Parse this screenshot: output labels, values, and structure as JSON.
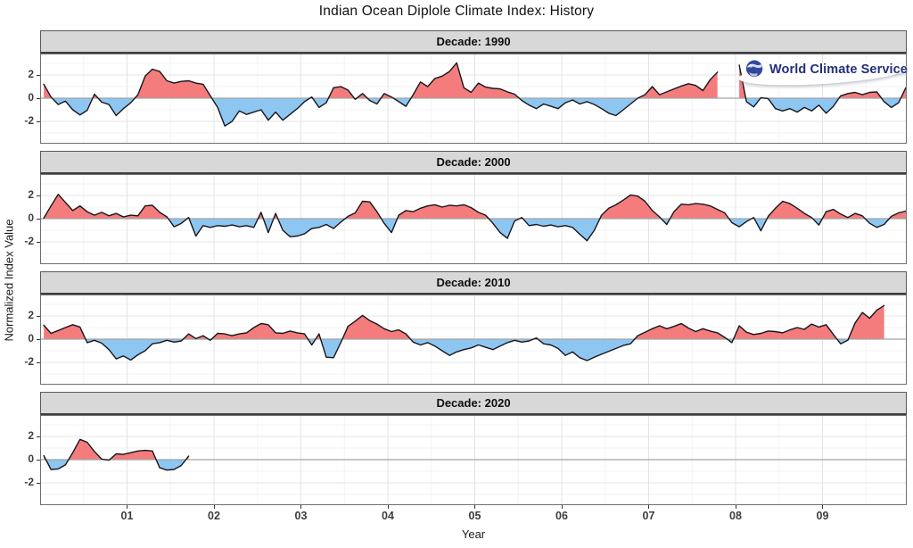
{
  "branding": {
    "logo_text": "World Climate Service"
  },
  "chart_data": {
    "type": "area",
    "title": "Indian Ocean Diplole Climate Index: History",
    "xlabel": "Year",
    "ylabel": "Normalized Index Value",
    "x_tick_labels": [
      "01",
      "02",
      "03",
      "04",
      "05",
      "06",
      "07",
      "08",
      "09"
    ],
    "x_tick_years": [
      1,
      2,
      3,
      4,
      5,
      6,
      7,
      8,
      9
    ],
    "y_ticks": [
      2,
      0,
      -2
    ],
    "y_minor_ticks": [
      3,
      1,
      -1,
      -3
    ],
    "x_range_years": [
      0,
      9.97
    ],
    "y_range": [
      -3.9,
      3.85
    ],
    "grid": true,
    "legend": "none",
    "point_interval": "monthly",
    "colors": {
      "positive_fill": "#f47c7c",
      "negative_fill": "#8ec6f2",
      "line": "#16161d",
      "zero_line": "#a3a3a3",
      "grid_major": "#e4e4e4",
      "grid_minor": "#f3f3f3",
      "panel_border": "#6e6e6e",
      "strip_bg": "#d8d8d8",
      "strip_border": "#3f3f3f",
      "logo_text_color": "#232e7b"
    },
    "facets": [
      {
        "label": "Decade: 1990",
        "values": [
          1.2,
          0.1,
          -0.55,
          -0.25,
          -1.0,
          -1.45,
          -1.05,
          0.35,
          -0.35,
          -0.55,
          -1.5,
          -0.9,
          -0.4,
          0.3,
          1.9,
          2.5,
          2.3,
          1.5,
          1.3,
          1.45,
          1.5,
          1.3,
          1.2,
          0.2,
          -0.8,
          -2.4,
          -2.0,
          -1.1,
          -1.4,
          -1.2,
          -1.0,
          -1.9,
          -1.2,
          -1.9,
          -1.4,
          -0.9,
          -0.3,
          0.1,
          -0.8,
          -0.4,
          0.9,
          1.0,
          0.7,
          -0.1,
          0.4,
          -0.2,
          -0.5,
          0.4,
          0.1,
          -0.3,
          -0.7,
          0.3,
          1.4,
          1.0,
          1.7,
          1.9,
          2.3,
          3.05,
          0.9,
          0.5,
          1.3,
          0.95,
          0.85,
          0.8,
          0.55,
          0.35,
          -0.2,
          -0.6,
          -0.9,
          -0.5,
          -0.7,
          -0.9,
          -0.4,
          -0.15,
          -0.5,
          -0.3,
          -0.55,
          -0.9,
          -1.3,
          -1.5,
          -1.0,
          -0.5,
          0.0,
          0.3,
          1.0,
          0.3,
          0.55,
          0.8,
          1.05,
          1.25,
          1.1,
          0.65,
          1.6,
          2.25,
          null,
          null,
          2.85,
          -0.3,
          -0.75,
          0.05,
          -0.05,
          -0.9,
          -1.1,
          -0.9,
          -1.2,
          -0.8,
          -1.1,
          -0.6,
          -1.3,
          -0.7,
          0.2,
          0.4,
          0.5,
          0.3,
          0.5,
          0.55,
          -0.3,
          -0.8,
          -0.4,
          0.9
        ]
      },
      {
        "label": "Decade: 2000",
        "values": [
          0.05,
          1.1,
          2.1,
          1.4,
          0.7,
          1.1,
          0.6,
          0.3,
          0.55,
          0.25,
          0.45,
          0.15,
          0.3,
          0.25,
          1.1,
          1.15,
          0.55,
          0.15,
          -0.7,
          -0.4,
          0.1,
          -1.5,
          -0.6,
          -0.75,
          -0.6,
          -0.65,
          -0.55,
          -0.7,
          -0.6,
          -0.75,
          0.55,
          -1.2,
          0.45,
          -1.0,
          -1.55,
          -1.5,
          -1.3,
          -0.85,
          -0.75,
          -0.5,
          -0.85,
          -0.3,
          0.2,
          0.5,
          1.5,
          1.45,
          0.6,
          -0.4,
          -1.2,
          0.3,
          0.7,
          0.6,
          0.9,
          1.1,
          1.2,
          1.0,
          1.15,
          1.1,
          1.2,
          0.95,
          0.55,
          0.3,
          -0.4,
          -1.2,
          -1.7,
          -0.2,
          0.1,
          -0.6,
          -0.5,
          -0.65,
          -0.55,
          -0.7,
          -0.6,
          -0.75,
          -1.35,
          -1.9,
          -1.0,
          0.3,
          0.9,
          1.2,
          1.6,
          2.05,
          1.95,
          1.5,
          0.7,
          0.15,
          -0.5,
          0.6,
          1.25,
          1.2,
          1.3,
          1.25,
          1.1,
          0.8,
          0.5,
          -0.35,
          -0.7,
          -0.25,
          0.1,
          -1.05,
          0.2,
          0.9,
          1.5,
          1.3,
          0.9,
          0.45,
          0.1,
          -0.55,
          0.6,
          0.8,
          0.4,
          0.1,
          0.45,
          0.25,
          -0.4,
          -0.75,
          -0.5,
          0.2,
          0.5,
          0.65
        ]
      },
      {
        "label": "Decade: 2010",
        "values": [
          1.2,
          0.5,
          0.75,
          1.0,
          1.25,
          1.05,
          -0.3,
          -0.1,
          -0.35,
          -0.9,
          -1.7,
          -1.45,
          -1.8,
          -1.35,
          -1.0,
          -0.4,
          -0.3,
          -0.1,
          -0.25,
          -0.15,
          0.45,
          0.05,
          0.3,
          -0.1,
          0.5,
          0.45,
          0.3,
          0.45,
          0.55,
          1.0,
          1.35,
          1.25,
          0.55,
          0.5,
          0.7,
          0.55,
          0.45,
          -0.5,
          0.45,
          -1.55,
          -1.6,
          -0.3,
          1.1,
          1.55,
          2.05,
          1.6,
          1.3,
          0.9,
          0.65,
          0.8,
          0.45,
          -0.25,
          -0.5,
          -0.3,
          -0.6,
          -1.0,
          -1.4,
          -1.1,
          -0.9,
          -0.75,
          -0.5,
          -0.7,
          -0.9,
          -0.6,
          -0.3,
          -0.1,
          -0.25,
          -0.15,
          0.1,
          -0.4,
          -0.5,
          -0.8,
          -1.4,
          -1.1,
          -1.6,
          -1.85,
          -1.55,
          -1.3,
          -1.05,
          -0.8,
          -0.55,
          -0.4,
          0.3,
          0.6,
          0.9,
          1.15,
          0.9,
          1.1,
          1.35,
          0.95,
          0.65,
          0.9,
          0.7,
          0.55,
          0.15,
          -0.3,
          1.15,
          0.6,
          0.4,
          0.5,
          0.7,
          0.65,
          0.55,
          0.8,
          1.0,
          0.85,
          1.3,
          1.05,
          1.25,
          0.4,
          -0.4,
          -0.1,
          1.4,
          2.3,
          1.8,
          2.5,
          2.9
        ]
      },
      {
        "label": "Decade: 2020",
        "values": [
          0.35,
          -0.85,
          -0.8,
          -0.45,
          0.6,
          1.75,
          1.5,
          0.7,
          0.05,
          -0.05,
          0.5,
          0.45,
          0.6,
          0.75,
          0.8,
          0.75,
          -0.7,
          -0.9,
          -0.85,
          -0.5,
          0.3
        ]
      }
    ]
  }
}
